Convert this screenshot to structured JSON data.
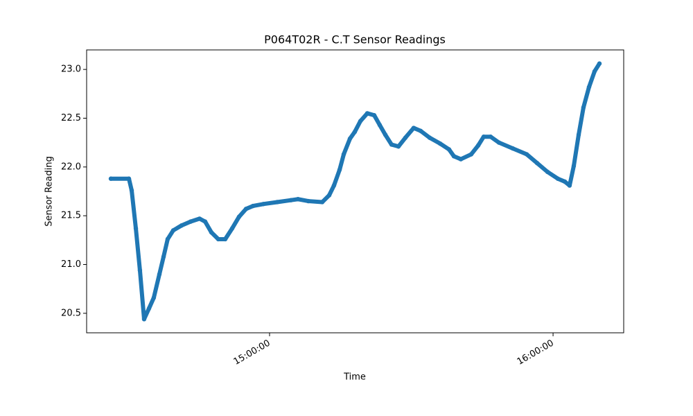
{
  "chart_data": {
    "type": "scatter",
    "title": "P064T02R - C.T Sensor Readings",
    "x_label": "Time",
    "y_label": "Sensor Reading",
    "color": "#1f77b4",
    "x": [
      "14:26:25",
      "14:30:14",
      "14:30:49",
      "14:31:42",
      "14:32:34",
      "14:33:27",
      "14:34:29",
      "14:35:30",
      "14:36:41",
      "14:37:34",
      "14:38:26",
      "14:39:37",
      "14:41:22",
      "14:43:17",
      "14:45:11",
      "14:46:22",
      "14:47:41",
      "14:49:09",
      "14:50:37",
      "14:52:05",
      "14:53:33",
      "14:55:01",
      "14:56:29",
      "14:58:41",
      "15:01:37",
      "15:04:33",
      "15:06:01",
      "15:08:13",
      "15:11:09",
      "15:12:37",
      "15:13:38",
      "15:14:49",
      "15:15:42",
      "15:17:01",
      "15:18:02",
      "15:19:13",
      "15:20:41",
      "15:22:09",
      "15:23:19",
      "15:24:30",
      "15:25:49",
      "15:27:17",
      "15:28:45",
      "15:30:30",
      "15:31:58",
      "15:33:53",
      "15:36:05",
      "15:37:59",
      "15:39:01",
      "15:40:29",
      "15:42:41",
      "15:44:09",
      "15:45:19",
      "15:46:47",
      "15:48:33",
      "15:51:29",
      "15:54:25",
      "15:56:37",
      "15:58:49",
      "16:01:01",
      "16:02:29",
      "16:03:30",
      "16:04:23",
      "16:05:25",
      "16:06:26",
      "16:07:37",
      "16:08:47",
      "16:09:49"
    ],
    "values": [
      21.88,
      21.88,
      21.76,
      21.37,
      20.94,
      20.44,
      20.55,
      20.66,
      20.9,
      21.08,
      21.26,
      21.35,
      21.4,
      21.44,
      21.47,
      21.44,
      21.33,
      21.26,
      21.26,
      21.37,
      21.49,
      21.57,
      21.6,
      21.62,
      21.64,
      21.66,
      21.67,
      21.65,
      21.64,
      21.71,
      21.81,
      21.97,
      22.13,
      22.29,
      22.36,
      22.47,
      22.55,
      22.53,
      22.43,
      22.33,
      22.23,
      22.21,
      22.3,
      22.4,
      22.37,
      22.3,
      22.24,
      22.18,
      22.11,
      22.08,
      22.13,
      22.22,
      22.31,
      22.31,
      22.25,
      22.19,
      22.13,
      22.04,
      21.95,
      21.88,
      21.85,
      21.81,
      22.01,
      22.33,
      22.61,
      22.82,
      22.98,
      23.06
    ],
    "xlim": [
      "14:21:17",
      "16:14:57"
    ],
    "xticks": [
      "15:00:00",
      "16:00:00"
    ],
    "ylim": [
      20.3,
      23.2
    ],
    "yticks": [
      20.5,
      {
        "value": 21,
        "label": "21.0"
      },
      21.5,
      {
        "value": 22,
        "label": "22.0"
      },
      22.5,
      {
        "value": 23,
        "label": "23.0"
      }
    ]
  }
}
